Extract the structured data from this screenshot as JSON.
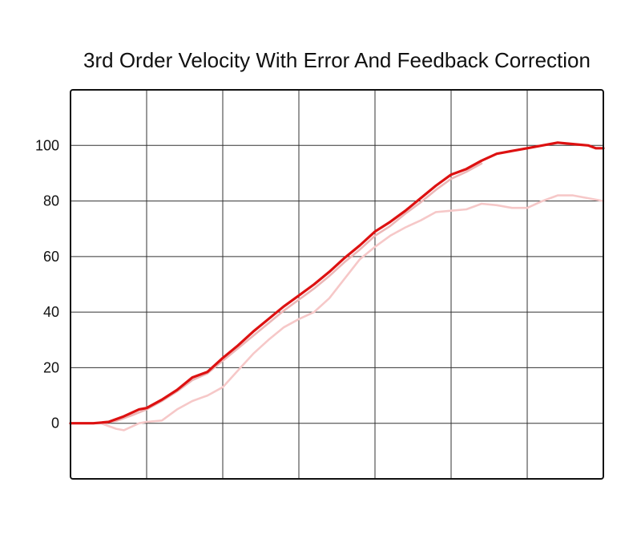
{
  "chart_data": {
    "type": "line",
    "title": "3rd Order Velocity With Error And Feedback Correction",
    "xlabel": "",
    "ylabel": "",
    "xlim": [
      0,
      7
    ],
    "ylim": [
      -20,
      120
    ],
    "yticks": [
      "0",
      "20",
      "40",
      "60",
      "80",
      "100"
    ],
    "ytick_values": [
      0,
      20,
      40,
      60,
      80,
      100
    ],
    "grid": true,
    "legend": "none",
    "series": [
      {
        "color": "#dd1111",
        "values": [
          [
            0.0,
            0.0
          ],
          [
            0.3,
            0.0
          ],
          [
            0.5,
            0.5
          ],
          [
            0.7,
            2.5
          ],
          [
            0.9,
            5.0
          ],
          [
            1.0,
            5.5
          ],
          [
            1.2,
            8.5
          ],
          [
            1.4,
            12.0
          ],
          [
            1.6,
            16.5
          ],
          [
            1.8,
            18.5
          ],
          [
            2.0,
            23.5
          ],
          [
            2.2,
            28.0
          ],
          [
            2.4,
            33.0
          ],
          [
            2.6,
            37.5
          ],
          [
            2.8,
            42.0
          ],
          [
            3.0,
            46.0
          ],
          [
            3.2,
            50.0
          ],
          [
            3.4,
            54.5
          ],
          [
            3.6,
            59.5
          ],
          [
            3.8,
            64.0
          ],
          [
            4.0,
            69.0
          ],
          [
            4.2,
            72.5
          ],
          [
            4.4,
            76.5
          ],
          [
            4.6,
            81.0
          ],
          [
            4.8,
            85.5
          ],
          [
            5.0,
            89.5
          ],
          [
            5.2,
            91.5
          ],
          [
            5.4,
            94.5
          ],
          [
            5.6,
            97.0
          ],
          [
            5.8,
            98.0
          ],
          [
            6.0,
            99.0
          ],
          [
            6.2,
            100.0
          ],
          [
            6.4,
            101.0
          ],
          [
            6.6,
            100.5
          ],
          [
            6.8,
            100.0
          ],
          [
            6.9,
            99.0
          ],
          [
            7.0,
            99.0
          ]
        ]
      },
      {
        "color": "#f6c8c8",
        "values": [
          [
            0.0,
            0.0
          ],
          [
            0.4,
            0.0
          ],
          [
            0.6,
            -2.0
          ],
          [
            0.7,
            -2.5
          ],
          [
            0.9,
            0.0
          ],
          [
            1.0,
            0.5
          ],
          [
            1.2,
            1.0
          ],
          [
            1.4,
            5.0
          ],
          [
            1.6,
            8.0
          ],
          [
            1.8,
            10.0
          ],
          [
            2.0,
            13.0
          ],
          [
            2.2,
            19.0
          ],
          [
            2.4,
            25.0
          ],
          [
            2.6,
            30.0
          ],
          [
            2.8,
            34.5
          ],
          [
            3.0,
            37.5
          ],
          [
            3.2,
            40.0
          ],
          [
            3.4,
            45.0
          ],
          [
            3.6,
            52.0
          ],
          [
            3.8,
            59.0
          ],
          [
            4.0,
            63.5
          ],
          [
            4.2,
            67.5
          ],
          [
            4.4,
            70.5
          ],
          [
            4.6,
            73.0
          ],
          [
            4.8,
            76.0
          ],
          [
            5.0,
            76.5
          ],
          [
            5.2,
            77.0
          ],
          [
            5.4,
            79.0
          ],
          [
            5.6,
            78.5
          ],
          [
            5.8,
            77.5
          ],
          [
            6.0,
            77.5
          ],
          [
            6.2,
            80.0
          ],
          [
            6.4,
            82.0
          ],
          [
            6.6,
            82.0
          ],
          [
            6.8,
            81.0
          ],
          [
            7.0,
            80.0
          ]
        ]
      },
      {
        "color": "#ebb7b7",
        "values": [
          [
            0.0,
            0.0
          ],
          [
            0.4,
            0.0
          ],
          [
            0.6,
            0.8
          ],
          [
            0.8,
            2.8
          ],
          [
            1.0,
            5.0
          ],
          [
            1.2,
            8.0
          ],
          [
            1.4,
            11.5
          ],
          [
            1.6,
            15.5
          ],
          [
            1.8,
            18.0
          ],
          [
            2.0,
            22.5
          ],
          [
            2.2,
            27.0
          ],
          [
            2.4,
            31.5
          ],
          [
            2.6,
            36.0
          ],
          [
            2.8,
            40.5
          ],
          [
            3.0,
            44.5
          ],
          [
            3.2,
            48.5
          ],
          [
            3.4,
            53.0
          ],
          [
            3.6,
            58.0
          ],
          [
            3.8,
            62.5
          ],
          [
            4.0,
            67.5
          ],
          [
            4.2,
            71.0
          ],
          [
            4.4,
            75.5
          ],
          [
            4.6,
            79.5
          ],
          [
            4.8,
            84.0
          ],
          [
            5.0,
            88.0
          ],
          [
            5.2,
            90.5
          ],
          [
            5.4,
            93.5
          ]
        ]
      }
    ]
  }
}
